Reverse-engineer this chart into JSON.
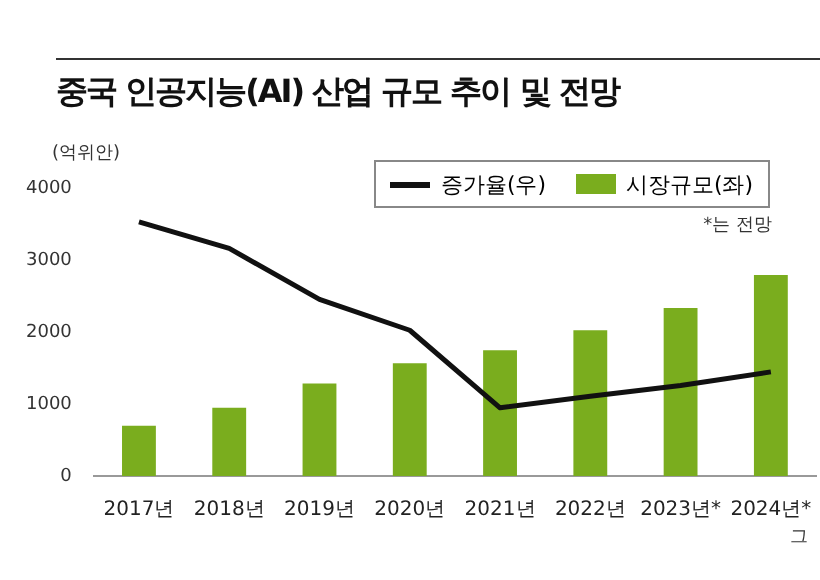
{
  "chart_data": {
    "type": "bar",
    "title": "중국 인공지능(AI) 산업 규모 추이 및 전망",
    "ylabel": "(억위안)",
    "categories": [
      "2017년",
      "2018년",
      "2019년",
      "2020년",
      "2021년",
      "2022년",
      "2023년*",
      "2024년*"
    ],
    "series": [
      {
        "name": "증가율(우)",
        "type": "line",
        "color": "#111111",
        "values": [
          3540,
          3170,
          2460,
          2030,
          950,
          1110,
          1260,
          1450
        ]
      },
      {
        "name": "시장규모(좌)",
        "color": "#7aad1e",
        "values": [
          700,
          950,
          1290,
          1570,
          1750,
          2030,
          2340,
          2800
        ]
      }
    ],
    "ylim": [
      0,
      4000
    ],
    "yticks": [
      0,
      1000,
      2000,
      3000,
      4000
    ],
    "grid": false,
    "legend": "top right",
    "marker": "none",
    "line_style": "solid",
    "annotations": [
      "*는 전망",
      "그"
    ]
  }
}
